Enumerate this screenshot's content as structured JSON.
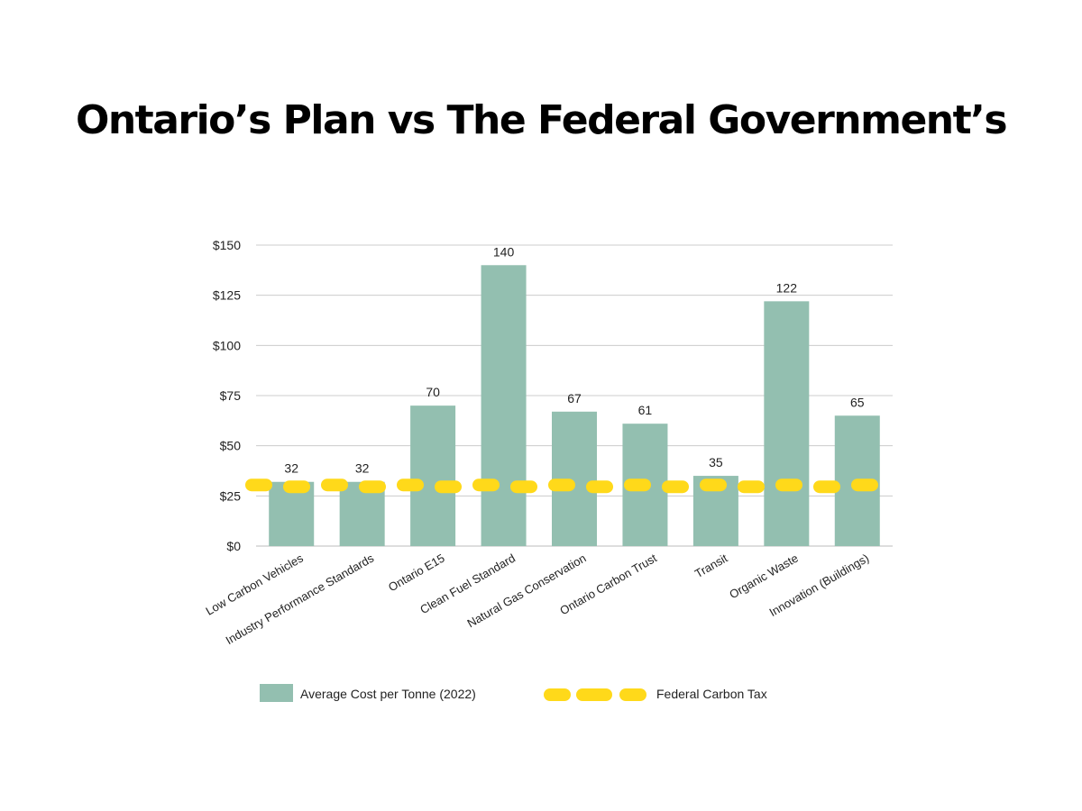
{
  "title": "Ontario’s Plan vs The Federal Government’s",
  "colors": {
    "bar": "#93bfb0",
    "carbon_tax_line": "#ffd91a",
    "gridline": "#cccccc",
    "axis": "#bbbbbb"
  },
  "chart_data": {
    "type": "bar",
    "categories": [
      "Low Carbon Vehicles",
      "Industry Performance Standards",
      "Ontario E15",
      "Clean Fuel Standard",
      "Natural Gas Conservation",
      "Ontario Carbon Trust",
      "Transit",
      "Organic Waste",
      "Innovation (Buildings)"
    ],
    "series": [
      {
        "name": "Average Cost per Tonne (2022)",
        "values": [
          32,
          32,
          70,
          140,
          67,
          61,
          35,
          122,
          65
        ],
        "data_labels": [
          "32",
          "32",
          "70",
          "140",
          "67",
          "61",
          "35",
          "122",
          "65"
        ]
      }
    ],
    "reference_line": {
      "name": "Federal Carbon Tax",
      "value": 30,
      "style": "dashed"
    },
    "y_ticks": [
      {
        "value": 0,
        "label": "$0"
      },
      {
        "value": 25,
        "label": "$25"
      },
      {
        "value": 50,
        "label": "$50"
      },
      {
        "value": 75,
        "label": "$75"
      },
      {
        "value": 100,
        "label": "$100"
      },
      {
        "value": 125,
        "label": "$125"
      },
      {
        "value": 150,
        "label": "$150"
      }
    ],
    "ylim": [
      0,
      150
    ],
    "grid": true,
    "legend_position": "bottom"
  }
}
